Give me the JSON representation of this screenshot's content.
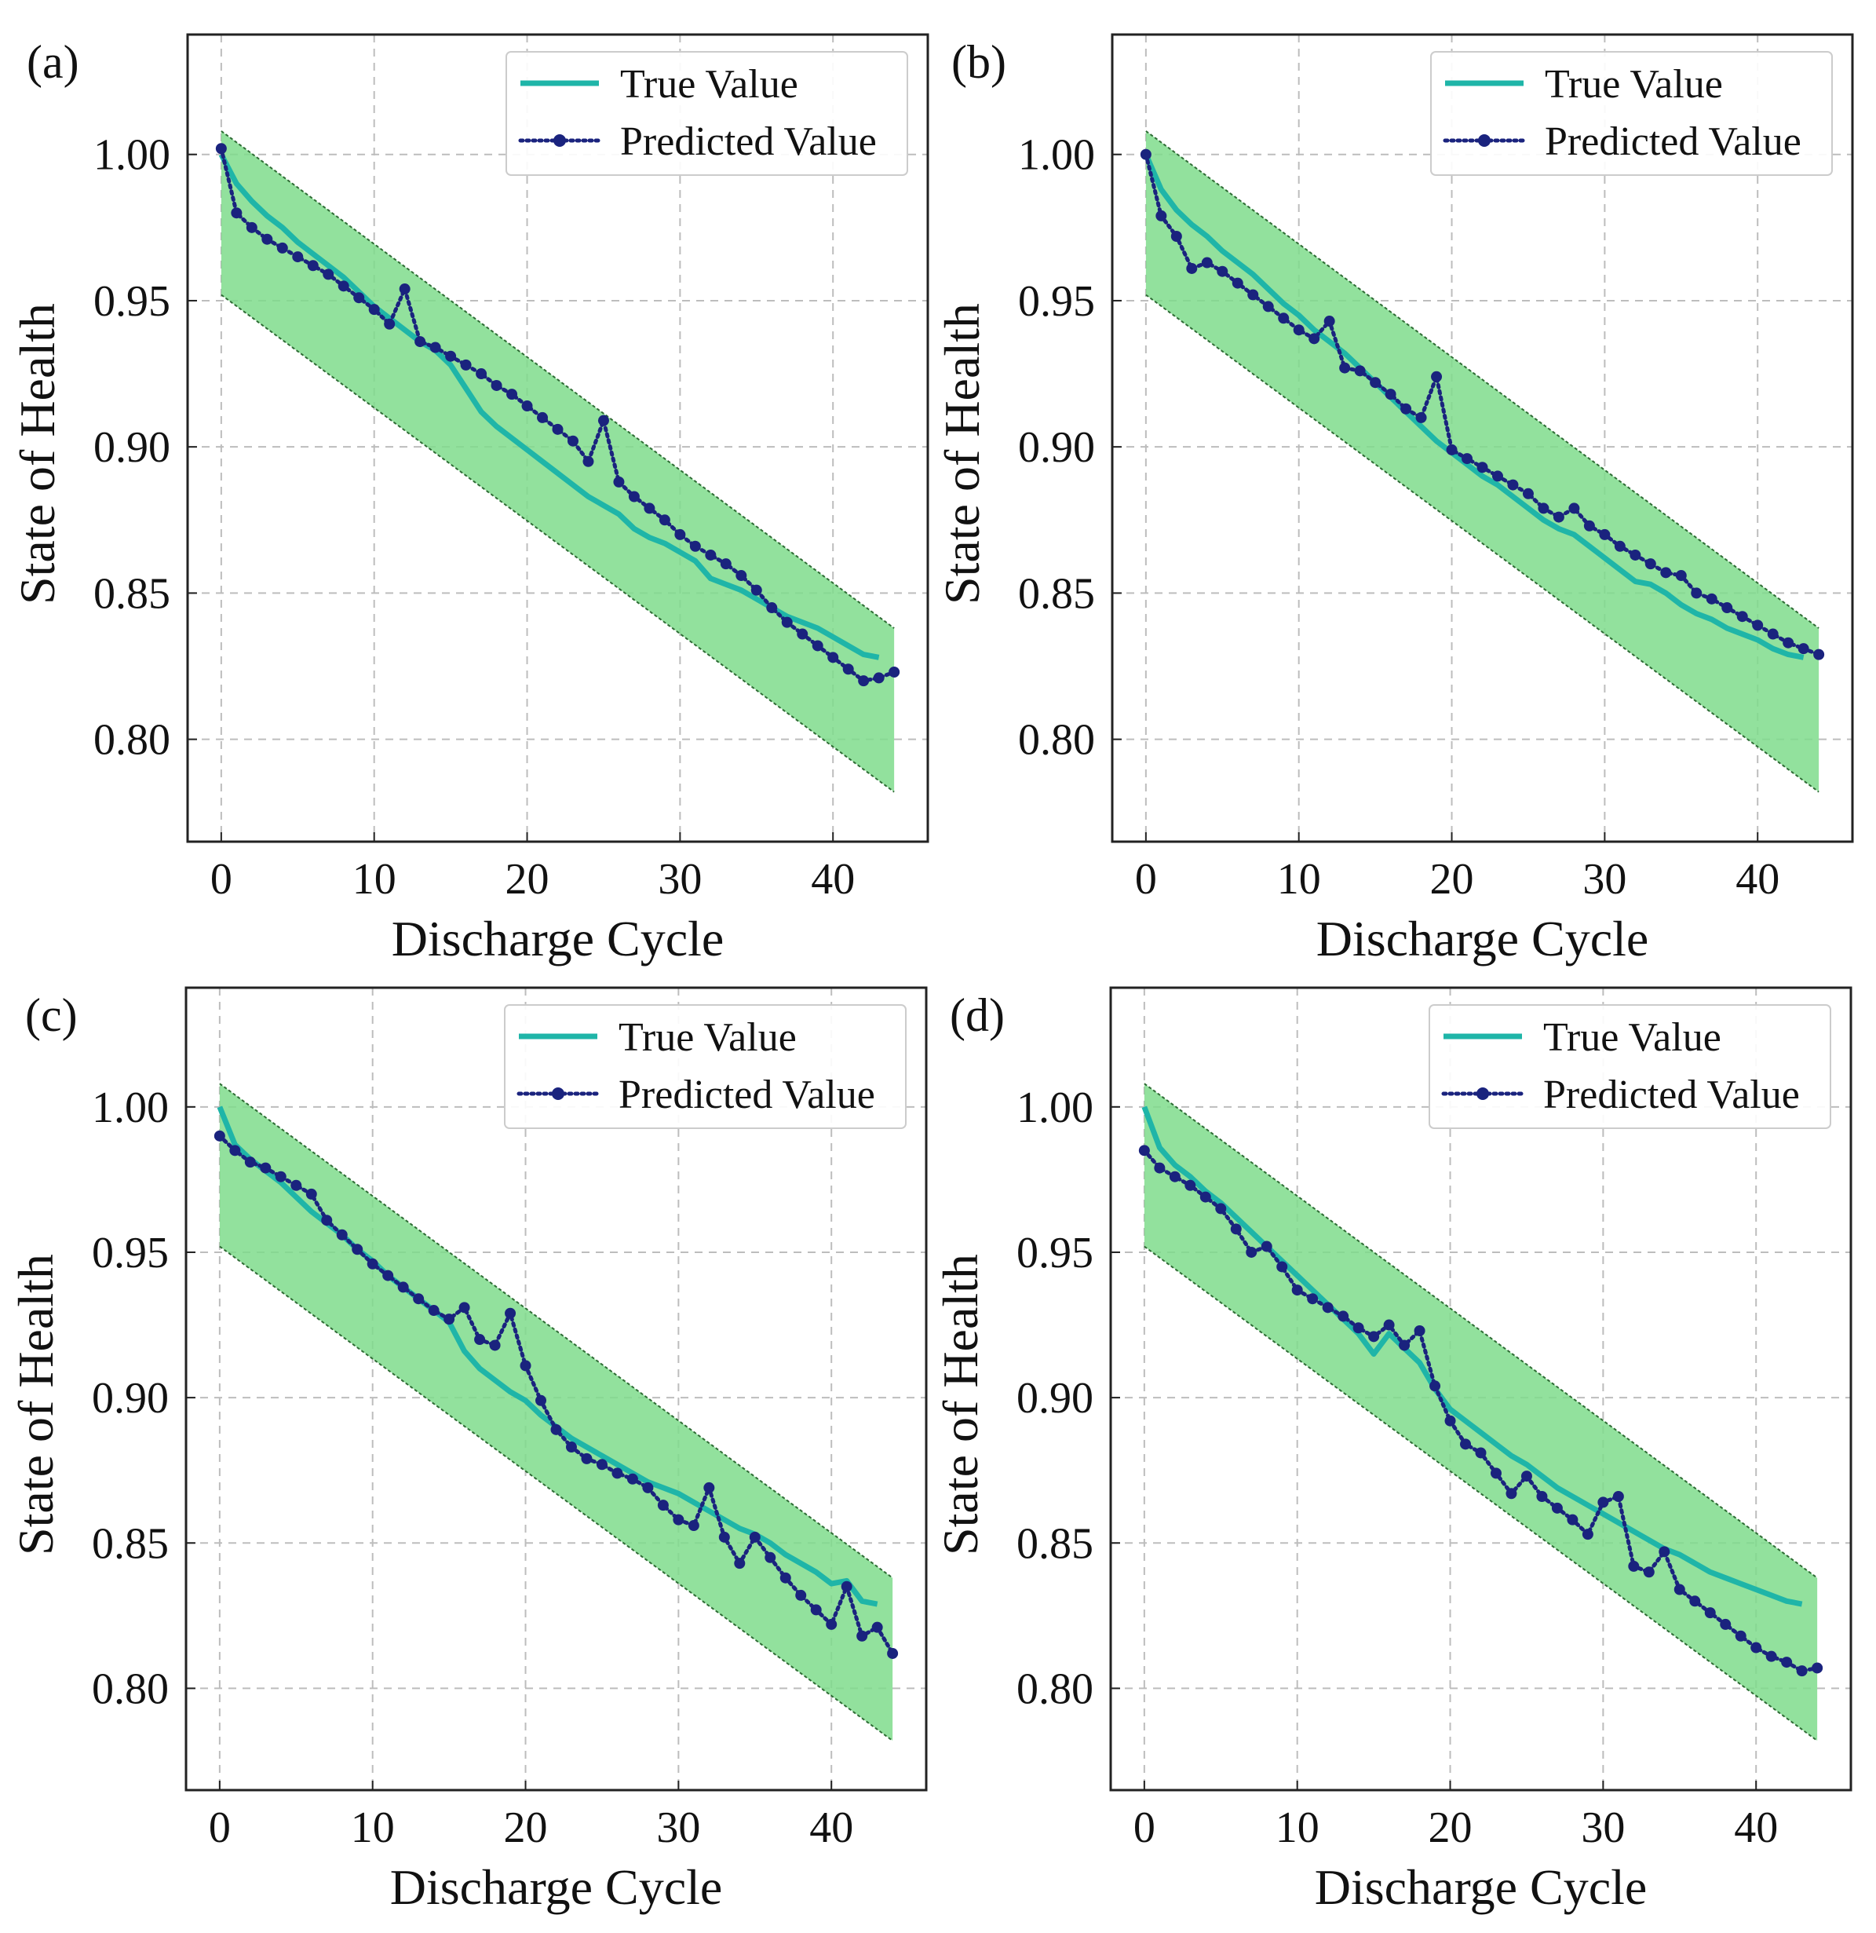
{
  "chart_data": [
    {
      "type": "line",
      "panel_label": "(a)",
      "xlabel": "Discharge Cycle",
      "ylabel": "State of Health",
      "xlim": [
        -2.2,
        46.2
      ],
      "ylim": [
        0.765,
        1.041
      ],
      "xticks": [
        0,
        10,
        20,
        30,
        40
      ],
      "yticks": [
        0.8,
        0.85,
        0.9,
        0.95,
        1.0
      ],
      "ytick_labels": [
        "0.80",
        "0.85",
        "0.90",
        "0.95",
        "1.00"
      ],
      "grid": true,
      "legend": {
        "placement": "top-right",
        "entries": [
          "True Value",
          "Predicted Value"
        ]
      },
      "band": {
        "x": [
          0,
          44
        ],
        "upper": [
          1.008,
          0.838
        ],
        "lower": [
          0.952,
          0.782
        ]
      },
      "series": [
        {
          "name": "True Value",
          "values": [
            1.0,
            0.99,
            0.984,
            0.979,
            0.975,
            0.97,
            0.966,
            0.962,
            0.958,
            0.953,
            0.948,
            0.944,
            0.94,
            0.936,
            0.933,
            0.928,
            0.92,
            0.912,
            0.907,
            0.903,
            0.899,
            0.895,
            0.891,
            0.887,
            0.883,
            0.88,
            0.877,
            0.872,
            0.869,
            0.867,
            0.864,
            0.861,
            0.855,
            0.853,
            0.851,
            0.848,
            0.845,
            0.842,
            0.84,
            0.838,
            0.835,
            0.832,
            0.829,
            0.828
          ]
        },
        {
          "name": "Predicted Value",
          "values": [
            1.002,
            0.98,
            0.975,
            0.971,
            0.968,
            0.965,
            0.962,
            0.959,
            0.955,
            0.951,
            0.947,
            0.942,
            0.954,
            0.936,
            0.934,
            0.931,
            0.928,
            0.925,
            0.921,
            0.918,
            0.914,
            0.91,
            0.906,
            0.902,
            0.895,
            0.909,
            0.888,
            0.883,
            0.879,
            0.875,
            0.87,
            0.866,
            0.863,
            0.86,
            0.856,
            0.851,
            0.845,
            0.84,
            0.836,
            0.832,
            0.828,
            0.824,
            0.82,
            0.821,
            0.823
          ]
        }
      ]
    },
    {
      "type": "line",
      "panel_label": "(b)",
      "xlabel": "Discharge Cycle",
      "ylabel": "State of Health",
      "xlim": [
        -2.2,
        46.2
      ],
      "ylim": [
        0.765,
        1.041
      ],
      "xticks": [
        0,
        10,
        20,
        30,
        40
      ],
      "yticks": [
        0.8,
        0.85,
        0.9,
        0.95,
        1.0
      ],
      "ytick_labels": [
        "0.80",
        "0.85",
        "0.90",
        "0.95",
        "1.00"
      ],
      "grid": true,
      "legend": {
        "placement": "top-right",
        "entries": [
          "True Value",
          "Predicted Value"
        ]
      },
      "band": {
        "x": [
          0,
          44
        ],
        "upper": [
          1.008,
          0.838
        ],
        "lower": [
          0.952,
          0.782
        ]
      },
      "series": [
        {
          "name": "True Value",
          "values": [
            1.0,
            0.988,
            0.981,
            0.976,
            0.972,
            0.967,
            0.963,
            0.959,
            0.954,
            0.949,
            0.945,
            0.94,
            0.936,
            0.932,
            0.927,
            0.922,
            0.917,
            0.912,
            0.907,
            0.902,
            0.898,
            0.894,
            0.89,
            0.887,
            0.883,
            0.879,
            0.875,
            0.872,
            0.87,
            0.866,
            0.862,
            0.858,
            0.854,
            0.853,
            0.85,
            0.846,
            0.843,
            0.841,
            0.838,
            0.836,
            0.834,
            0.831,
            0.829,
            0.828
          ]
        },
        {
          "name": "Predicted Value",
          "values": [
            1.0,
            0.979,
            0.972,
            0.961,
            0.963,
            0.96,
            0.956,
            0.952,
            0.948,
            0.944,
            0.94,
            0.937,
            0.943,
            0.927,
            0.926,
            0.922,
            0.918,
            0.913,
            0.91,
            0.924,
            0.899,
            0.896,
            0.893,
            0.89,
            0.887,
            0.884,
            0.879,
            0.876,
            0.879,
            0.873,
            0.87,
            0.866,
            0.863,
            0.86,
            0.857,
            0.856,
            0.85,
            0.848,
            0.845,
            0.842,
            0.839,
            0.836,
            0.833,
            0.831,
            0.829
          ]
        }
      ]
    },
    {
      "type": "line",
      "panel_label": "(c)",
      "xlabel": "Discharge Cycle",
      "ylabel": "State of Health",
      "xlim": [
        -2.2,
        46.2
      ],
      "ylim": [
        0.765,
        1.041
      ],
      "xticks": [
        0,
        10,
        20,
        30,
        40
      ],
      "yticks": [
        0.8,
        0.85,
        0.9,
        0.95,
        1.0
      ],
      "ytick_labels": [
        "0.80",
        "0.85",
        "0.90",
        "0.95",
        "1.00"
      ],
      "grid": true,
      "legend": {
        "placement": "top-right",
        "entries": [
          "True Value",
          "Predicted Value"
        ]
      },
      "band": {
        "x": [
          0,
          44
        ],
        "upper": [
          1.008,
          0.838
        ],
        "lower": [
          0.952,
          0.782
        ]
      },
      "series": [
        {
          "name": "True Value",
          "values": [
            1.0,
            0.987,
            0.982,
            0.978,
            0.974,
            0.969,
            0.964,
            0.96,
            0.956,
            0.951,
            0.947,
            0.942,
            0.938,
            0.934,
            0.93,
            0.926,
            0.916,
            0.91,
            0.906,
            0.902,
            0.899,
            0.894,
            0.89,
            0.886,
            0.883,
            0.88,
            0.877,
            0.874,
            0.871,
            0.869,
            0.867,
            0.864,
            0.861,
            0.858,
            0.855,
            0.853,
            0.85,
            0.846,
            0.843,
            0.84,
            0.836,
            0.837,
            0.83,
            0.829
          ]
        },
        {
          "name": "Predicted Value",
          "values": [
            0.99,
            0.985,
            0.981,
            0.979,
            0.976,
            0.973,
            0.97,
            0.961,
            0.956,
            0.951,
            0.946,
            0.942,
            0.938,
            0.934,
            0.93,
            0.927,
            0.931,
            0.92,
            0.918,
            0.929,
            0.911,
            0.899,
            0.889,
            0.883,
            0.879,
            0.877,
            0.874,
            0.872,
            0.869,
            0.863,
            0.858,
            0.856,
            0.869,
            0.852,
            0.843,
            0.852,
            0.845,
            0.838,
            0.832,
            0.827,
            0.822,
            0.835,
            0.818,
            0.821,
            0.812
          ]
        }
      ]
    },
    {
      "type": "line",
      "panel_label": "(d)",
      "xlabel": "Discharge Cycle",
      "ylabel": "State of Health",
      "xlim": [
        -2.2,
        46.2
      ],
      "ylim": [
        0.765,
        1.041
      ],
      "xticks": [
        0,
        10,
        20,
        30,
        40
      ],
      "yticks": [
        0.8,
        0.85,
        0.9,
        0.95,
        1.0
      ],
      "ytick_labels": [
        "0.80",
        "0.85",
        "0.90",
        "0.95",
        "1.00"
      ],
      "grid": true,
      "legend": {
        "placement": "top-right",
        "entries": [
          "True Value",
          "Predicted Value"
        ]
      },
      "band": {
        "x": [
          0,
          44
        ],
        "upper": [
          1.008,
          0.838
        ],
        "lower": [
          0.952,
          0.782
        ]
      },
      "series": [
        {
          "name": "True Value",
          "values": [
            1.0,
            0.986,
            0.98,
            0.976,
            0.971,
            0.967,
            0.962,
            0.957,
            0.952,
            0.947,
            0.942,
            0.937,
            0.932,
            0.927,
            0.922,
            0.915,
            0.922,
            0.917,
            0.912,
            0.903,
            0.896,
            0.892,
            0.888,
            0.884,
            0.88,
            0.877,
            0.873,
            0.869,
            0.866,
            0.863,
            0.86,
            0.857,
            0.854,
            0.851,
            0.848,
            0.846,
            0.843,
            0.84,
            0.838,
            0.836,
            0.834,
            0.832,
            0.83,
            0.829
          ]
        },
        {
          "name": "Predicted Value",
          "values": [
            0.985,
            0.979,
            0.976,
            0.973,
            0.969,
            0.965,
            0.958,
            0.95,
            0.952,
            0.945,
            0.937,
            0.934,
            0.931,
            0.928,
            0.924,
            0.921,
            0.925,
            0.918,
            0.923,
            0.904,
            0.892,
            0.884,
            0.881,
            0.874,
            0.867,
            0.873,
            0.866,
            0.862,
            0.858,
            0.853,
            0.864,
            0.866,
            0.842,
            0.84,
            0.847,
            0.834,
            0.83,
            0.826,
            0.822,
            0.818,
            0.814,
            0.811,
            0.809,
            0.806,
            0.807
          ]
        }
      ]
    }
  ],
  "colors": {
    "true_line": "#1fb5a8",
    "predicted_line": "#1a237e",
    "band_fill": "#7fdc8c",
    "band_edge": "#2e6b34",
    "grid": "#bdbdbd"
  }
}
